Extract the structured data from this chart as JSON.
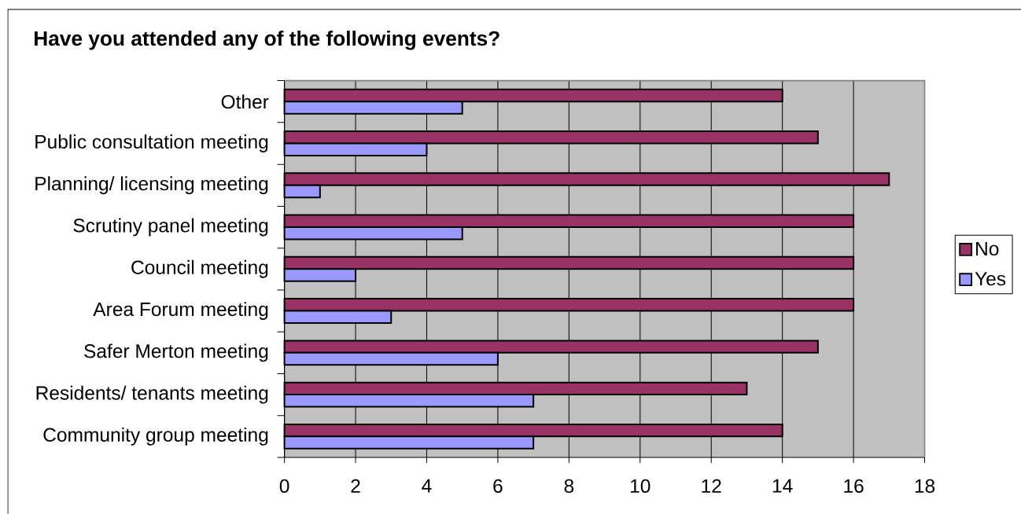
{
  "chart_data": {
    "type": "bar",
    "orientation": "horizontal",
    "title": "Have you attended any of the following events?",
    "categories": [
      "Other",
      "Public consultation meeting",
      "Planning/ licensing meeting",
      "Scrutiny panel meeting",
      "Council meeting",
      "Area Forum meeting",
      "Safer Merton meeting",
      "Residents/ tenants meeting",
      "Community group meeting"
    ],
    "series": [
      {
        "name": "No",
        "color": "#993366",
        "values": [
          14,
          15,
          17,
          16,
          16,
          16,
          15,
          13,
          14
        ]
      },
      {
        "name": "Yes",
        "color": "#9999ff",
        "values": [
          5,
          4,
          1,
          5,
          2,
          3,
          6,
          7,
          7
        ]
      }
    ],
    "xlim": [
      0,
      18
    ],
    "xticks": [
      0,
      2,
      4,
      6,
      8,
      10,
      12,
      14,
      16,
      18
    ],
    "grid": "x",
    "legend": "right"
  }
}
